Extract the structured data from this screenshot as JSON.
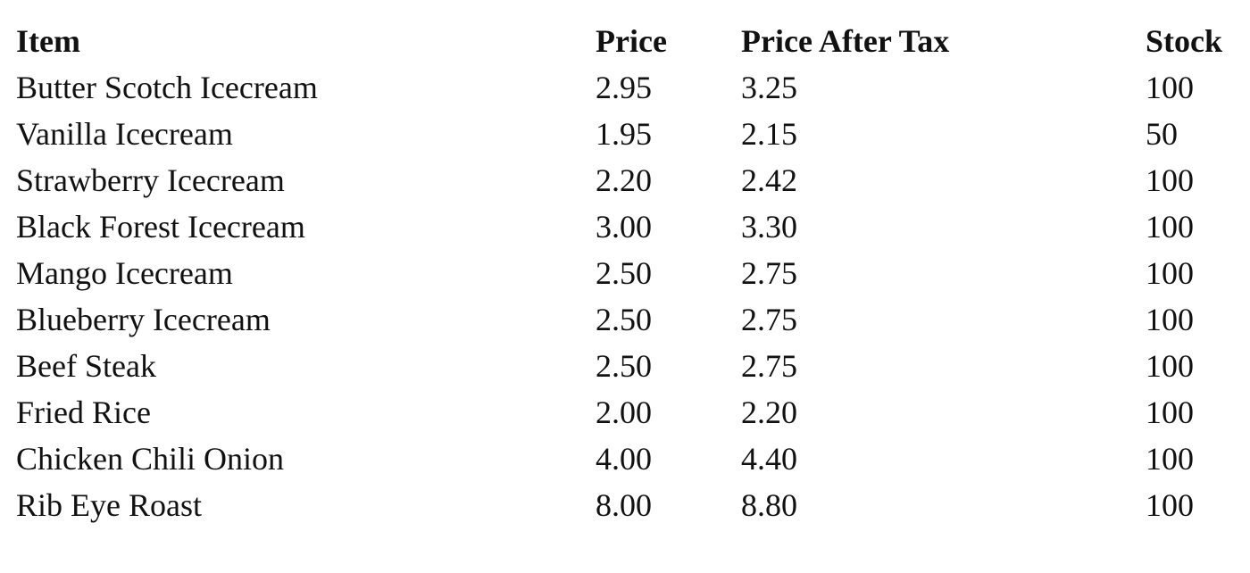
{
  "table": {
    "headers": {
      "item": "Item",
      "price": "Price",
      "price_after_tax": "Price After Tax",
      "stock": "Stock"
    },
    "rows": [
      {
        "item": "Butter Scotch Icecream",
        "price": "2.95",
        "price_after_tax": "3.25",
        "stock": "100"
      },
      {
        "item": "Vanilla Icecream",
        "price": "1.95",
        "price_after_tax": "2.15",
        "stock": "50"
      },
      {
        "item": "Strawberry Icecream",
        "price": "2.20",
        "price_after_tax": "2.42",
        "stock": "100"
      },
      {
        "item": "Black Forest Icecream",
        "price": "3.00",
        "price_after_tax": "3.30",
        "stock": "100"
      },
      {
        "item": "Mango Icecream",
        "price": "2.50",
        "price_after_tax": "2.75",
        "stock": "100"
      },
      {
        "item": "Blueberry Icecream",
        "price": "2.50",
        "price_after_tax": "2.75",
        "stock": "100"
      },
      {
        "item": "Beef Steak",
        "price": "2.50",
        "price_after_tax": "2.75",
        "stock": "100"
      },
      {
        "item": "Fried Rice",
        "price": "2.00",
        "price_after_tax": "2.20",
        "stock": "100"
      },
      {
        "item": "Chicken Chili Onion",
        "price": "4.00",
        "price_after_tax": "4.40",
        "stock": "100"
      },
      {
        "item": "Rib Eye Roast",
        "price": "8.00",
        "price_after_tax": "8.80",
        "stock": "100"
      }
    ]
  }
}
